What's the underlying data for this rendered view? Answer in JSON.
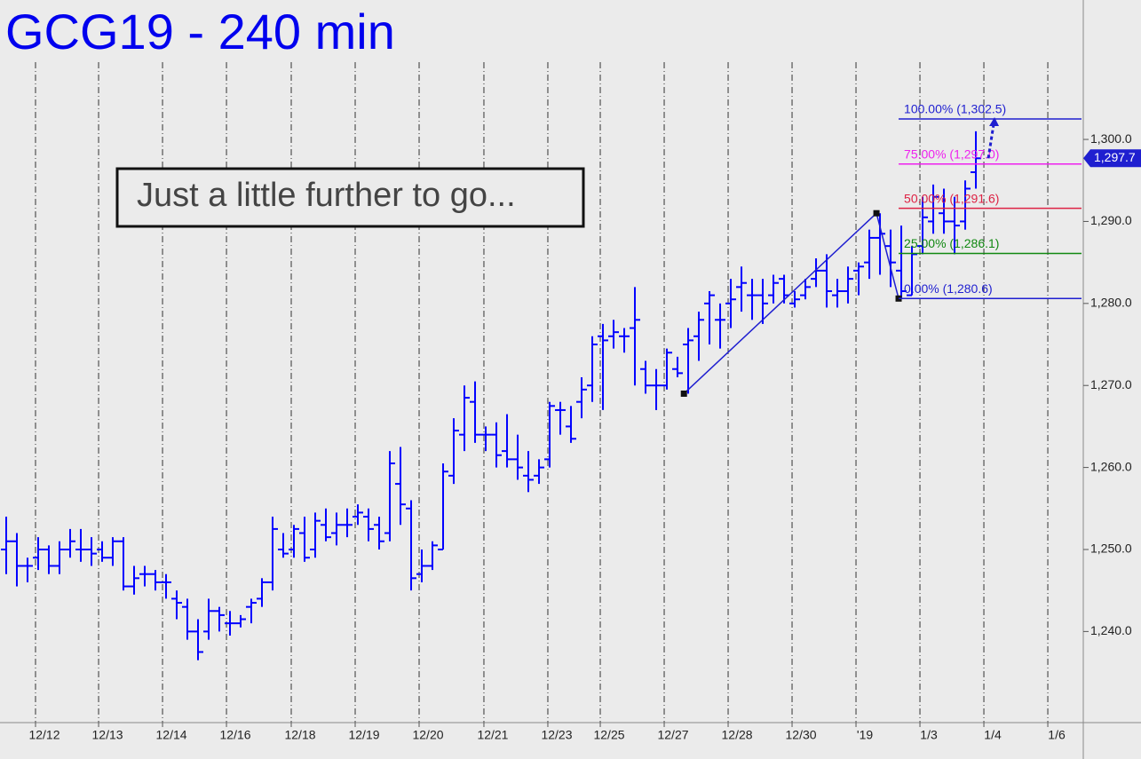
{
  "chart_data": {
    "type": "ohlc",
    "title": "GCG19 - 240 min",
    "annotation": "Just a little further to go...",
    "color": "#0000ff",
    "xlim": [
      -0.583,
      101.08
    ],
    "ylim": [
      1229,
      1317
    ],
    "yticks": [
      {
        "value": 1240,
        "label": "1,240.0"
      },
      {
        "value": 1250,
        "label": "1,250.0"
      },
      {
        "value": 1260,
        "label": "1,260.0"
      },
      {
        "value": 1270,
        "label": "1,270.0"
      },
      {
        "value": 1280,
        "label": "1,280.0"
      },
      {
        "value": 1290,
        "label": "1,290.0"
      },
      {
        "value": 1300,
        "label": "1,300.0"
      }
    ],
    "xticks": [
      {
        "value": 2.75,
        "label": "12/12"
      },
      {
        "value": 8.67,
        "label": "12/13"
      },
      {
        "value": 14.67,
        "label": "12/14"
      },
      {
        "value": 20.67,
        "label": "12/16"
      },
      {
        "value": 26.75,
        "label": "12/18"
      },
      {
        "value": 32.75,
        "label": "12/19"
      },
      {
        "value": 38.75,
        "label": "12/20"
      },
      {
        "value": 44.83,
        "label": "12/21"
      },
      {
        "value": 50.83,
        "label": "12/23"
      },
      {
        "value": 55.75,
        "label": "12/25"
      },
      {
        "value": 61.75,
        "label": "12/27"
      },
      {
        "value": 67.75,
        "label": "12/28"
      },
      {
        "value": 73.75,
        "label": "12/30"
      },
      {
        "value": 79.75,
        "label": "'19"
      },
      {
        "value": 85.75,
        "label": "1/3"
      },
      {
        "value": 91.75,
        "label": "1/4"
      },
      {
        "value": 97.75,
        "label": "1/6"
      }
    ],
    "grid": true,
    "values": [
      [
        1250,
        1254,
        1247,
        1251
      ],
      [
        1251,
        1252,
        1245.5,
        1248
      ],
      [
        1248,
        1249,
        1246,
        1248
      ],
      [
        1249,
        1251.5,
        1247.5,
        1250
      ],
      [
        1250,
        1250.5,
        1247,
        1248
      ],
      [
        1248,
        1251,
        1247,
        1250
      ],
      [
        1250,
        1252.5,
        1249,
        1251
      ],
      [
        1250,
        1252.5,
        1248.5,
        1250
      ],
      [
        1250,
        1251.5,
        1248,
        1249.5
      ],
      [
        1250,
        1251,
        1248.5,
        1249
      ],
      [
        1249,
        1251.5,
        1248,
        1251
      ],
      [
        1251,
        1251.5,
        1245,
        1245.5
      ],
      [
        1245.5,
        1248,
        1244.5,
        1246.5
      ],
      [
        1247,
        1248,
        1245.5,
        1247
      ],
      [
        1247,
        1247.5,
        1245,
        1246
      ],
      [
        1246,
        1247,
        1244,
        1246
      ],
      [
        1244,
        1245,
        1241.5,
        1243.5
      ],
      [
        1243,
        1244,
        1239,
        1240
      ],
      [
        1240,
        1241.5,
        1236.5,
        1237.5
      ],
      [
        1240,
        1244,
        1239,
        1242.5
      ],
      [
        1242.5,
        1243,
        1240,
        1242
      ],
      [
        1241,
        1242.5,
        1239.5,
        1241
      ],
      [
        1241,
        1242,
        1240.5,
        1241.5
      ],
      [
        1243,
        1244,
        1241,
        1243.5
      ],
      [
        1244,
        1246.5,
        1243,
        1246
      ],
      [
        1246,
        1254,
        1245,
        1252.5
      ],
      [
        1250,
        1252,
        1249,
        1249.5
      ],
      [
        1250,
        1253,
        1249,
        1252.5
      ],
      [
        1252,
        1254,
        1248.5,
        1249
      ],
      [
        1250,
        1254.5,
        1249,
        1253.5
      ],
      [
        1253,
        1255,
        1251,
        1251.5
      ],
      [
        1252,
        1254.5,
        1250.5,
        1253
      ],
      [
        1253,
        1255,
        1251.5,
        1253
      ],
      [
        1254,
        1255.5,
        1253,
        1254.5
      ],
      [
        1254,
        1255,
        1251,
        1252.5
      ],
      [
        1253,
        1254,
        1250,
        1251
      ],
      [
        1252,
        1262,
        1251,
        1260.5
      ],
      [
        1258,
        1262.5,
        1253,
        1255.5
      ],
      [
        1255,
        1256,
        1245,
        1246.5
      ],
      [
        1247,
        1250,
        1246,
        1248
      ],
      [
        1248,
        1251,
        1247.5,
        1250.5
      ],
      [
        1250,
        1260.5,
        1250,
        1259.5
      ],
      [
        1259,
        1266,
        1258,
        1264.5
      ],
      [
        1264,
        1270,
        1262,
        1268.5
      ],
      [
        1268,
        1270.5,
        1263,
        1264
      ],
      [
        1264,
        1265,
        1262,
        1264
      ],
      [
        1264,
        1265.5,
        1260,
        1261.5
      ],
      [
        1262,
        1266.5,
        1260,
        1261
      ],
      [
        1261,
        1264,
        1258.5,
        1260
      ],
      [
        1259,
        1262,
        1257,
        1258.5
      ],
      [
        1259,
        1261,
        1258,
        1260
      ],
      [
        1261,
        1268,
        1260,
        1267.5
      ],
      [
        1267,
        1268,
        1264,
        1267
      ],
      [
        1265,
        1267.5,
        1263,
        1263.5
      ],
      [
        1268,
        1271,
        1266,
        1269.5
      ],
      [
        1270,
        1276,
        1268,
        1275
      ],
      [
        1276,
        1277.5,
        1267,
        1275.5
      ],
      [
        1276,
        1278,
        1274.5,
        1276.5
      ],
      [
        1276,
        1277,
        1274,
        1276
      ],
      [
        1277,
        1282,
        1270,
        1278
      ],
      [
        1272,
        1273,
        1269,
        1270
      ],
      [
        1270,
        1272,
        1267,
        1270
      ],
      [
        1270,
        1274.5,
        1269.5,
        1274
      ],
      [
        1272,
        1273.5,
        1271,
        1271.5
      ],
      [
        1275,
        1277,
        1269,
        1275.5
      ],
      [
        1276,
        1279,
        1273,
        1278
      ],
      [
        1280,
        1281.5,
        1275,
        1281
      ],
      [
        1278,
        1280,
        1274.5,
        1278
      ],
      [
        1280,
        1283,
        1277,
        1280.5
      ],
      [
        1282,
        1284.5,
        1279,
        1282.5
      ],
      [
        1281,
        1283,
        1278,
        1281
      ],
      [
        1281,
        1283,
        1277.5,
        1280
      ],
      [
        1281,
        1283.5,
        1280,
        1282.5
      ],
      [
        1283,
        1283.5,
        1280,
        1281
      ],
      [
        1280,
        1281.5,
        1279.5,
        1280.5
      ],
      [
        1281,
        1283,
        1280.5,
        1282
      ],
      [
        1283,
        1285.5,
        1282,
        1284
      ],
      [
        1284,
        1286,
        1279.5,
        1281.5
      ],
      [
        1281,
        1283,
        1279.5,
        1281.5
      ],
      [
        1281.5,
        1284.5,
        1280,
        1283
      ],
      [
        1284,
        1285,
        1281,
        1284.5
      ],
      [
        1285,
        1289,
        1283,
        1288
      ],
      [
        1288,
        1291,
        1283.5,
        1288.5
      ],
      [
        1287,
        1289,
        1282,
        1285
      ],
      [
        1284,
        1289.5,
        1280.6,
        1281.5
      ],
      [
        1281,
        1287,
        1281,
        1286
      ],
      [
        1287,
        1293,
        1286,
        1290.5
      ],
      [
        1290,
        1294.5,
        1288.5,
        1293
      ],
      [
        1291,
        1294,
        1288.5,
        1290
      ],
      [
        1290,
        1293,
        1286,
        1289.5
      ],
      [
        1290,
        1295,
        1289,
        1294
      ],
      [
        1296,
        1301,
        1294,
        1297.7
      ]
    ],
    "last_price": {
      "value": 1297.7,
      "label": "1,297.7"
    },
    "pattern": {
      "x": [
        63.6,
        81.67,
        83.75
      ],
      "values": [
        1269,
        1291,
        1280.6
      ]
    },
    "levels": [
      {
        "value": 1302.5,
        "label": "100.00% (1,302.5)",
        "color": "#1f1fd0"
      },
      {
        "value": 1297.0,
        "label": "75.00% (1,297.0)",
        "color": "#ee22ee"
      },
      {
        "value": 1291.6,
        "label": "50.00% (1,291.6)",
        "color": "#dd2244"
      },
      {
        "value": 1286.1,
        "label": "25.00% (1,286.1)",
        "color": "#118811"
      },
      {
        "value": 1280.6,
        "label": "0.00% (1,280.6)",
        "color": "#1f1fd0"
      }
    ]
  }
}
